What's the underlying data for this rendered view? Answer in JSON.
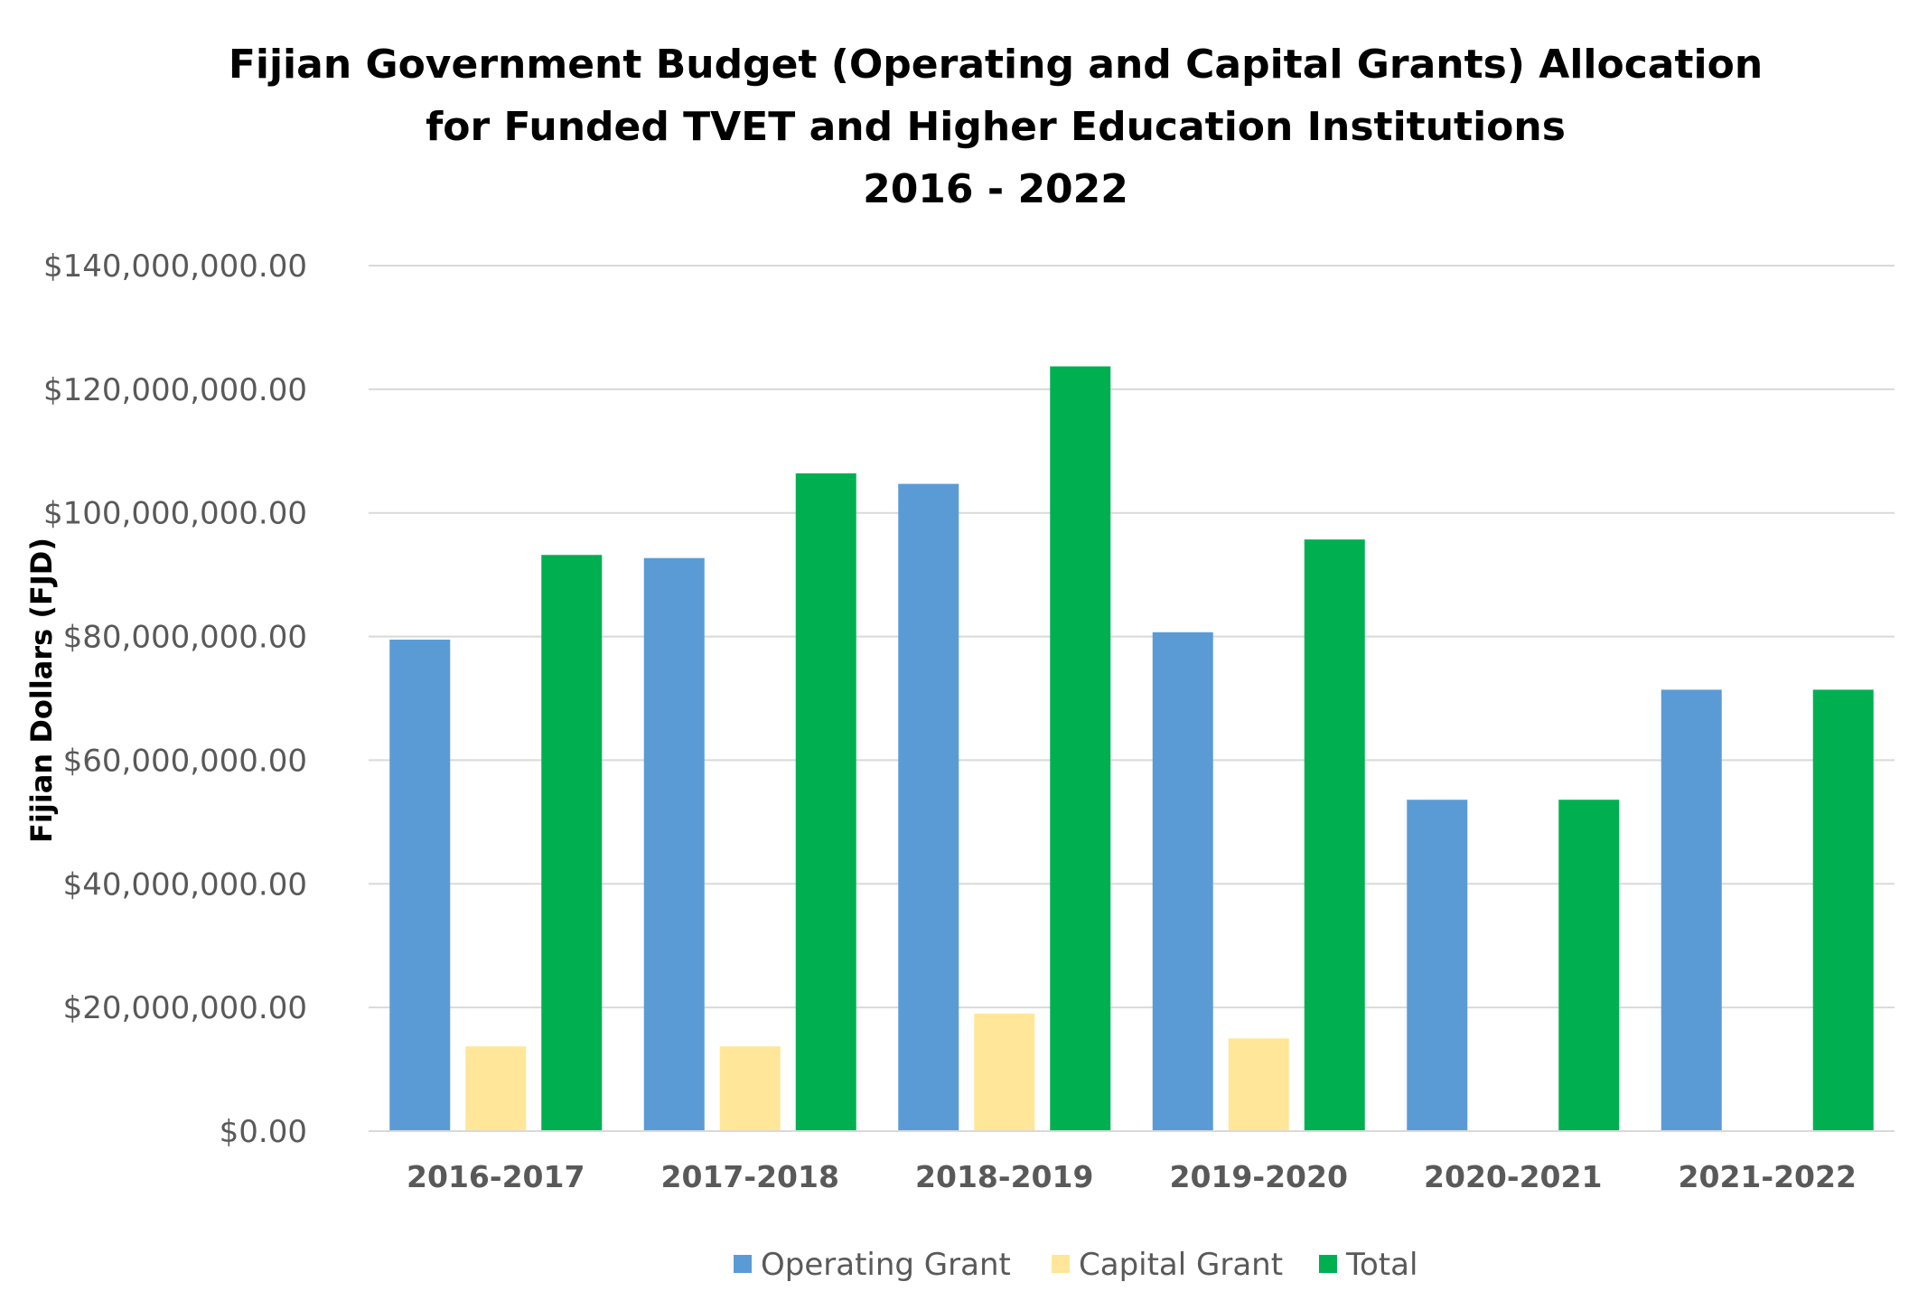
{
  "chart_data": {
    "type": "bar",
    "title_lines": [
      "Fijian Government  Budget (Operating and Capital Grants) Allocation",
      "for Funded TVET and Higher Education Institutions",
      "2016 - 2022"
    ],
    "xlabel": "",
    "ylabel": "Fijian Dollars (FJD)",
    "ylim": [
      0,
      140000000
    ],
    "yticks": [
      0,
      20000000,
      40000000,
      60000000,
      80000000,
      100000000,
      120000000,
      140000000
    ],
    "ytick_labels": [
      "$0.00",
      "$20,000,000.00",
      "$40,000,000.00",
      "$60,000,000.00",
      "$80,000,000.00",
      "$100,000,000.00",
      "$120,000,000.00",
      "$140,000,000.00"
    ],
    "categories": [
      "2016-2017",
      "2017-2018",
      "2018-2019",
      "2019-2020",
      "2020-2021",
      "2021-2022"
    ],
    "series": [
      {
        "name": "Operating Grant",
        "color": "#5b9bd5",
        "values": [
          79500000,
          92700000,
          104700000,
          80700000,
          53600000,
          71400000
        ]
      },
      {
        "name": "Capital Grant",
        "color": "#ffe699",
        "values": [
          13700000,
          13700000,
          19000000,
          15000000,
          0,
          0
        ]
      },
      {
        "name": "Total",
        "color": "#00b050",
        "values": [
          93200000,
          106400000,
          123700000,
          95700000,
          53600000,
          71400000
        ]
      }
    ],
    "grid": true,
    "legend_position": "bottom"
  }
}
